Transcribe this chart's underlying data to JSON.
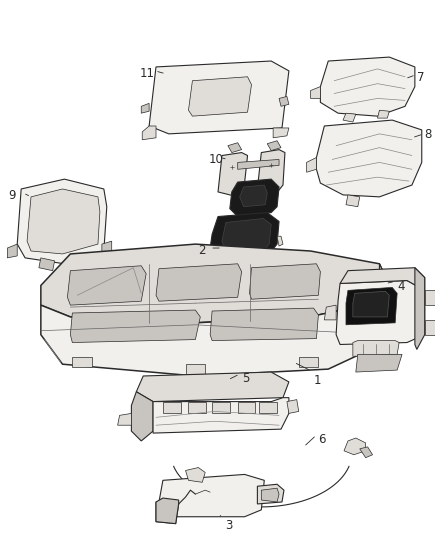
{
  "background_color": "#ffffff",
  "figure_width": 4.38,
  "figure_height": 5.33,
  "dpi": 100,
  "label_color": "#2a2a2a",
  "label_fontsize": 8.5,
  "line_color": "#2a2a2a",
  "fill_light": "#f2f0ed",
  "fill_mid": "#e0ddd8",
  "fill_dark": "#c8c5c0",
  "fill_black": "#111111"
}
